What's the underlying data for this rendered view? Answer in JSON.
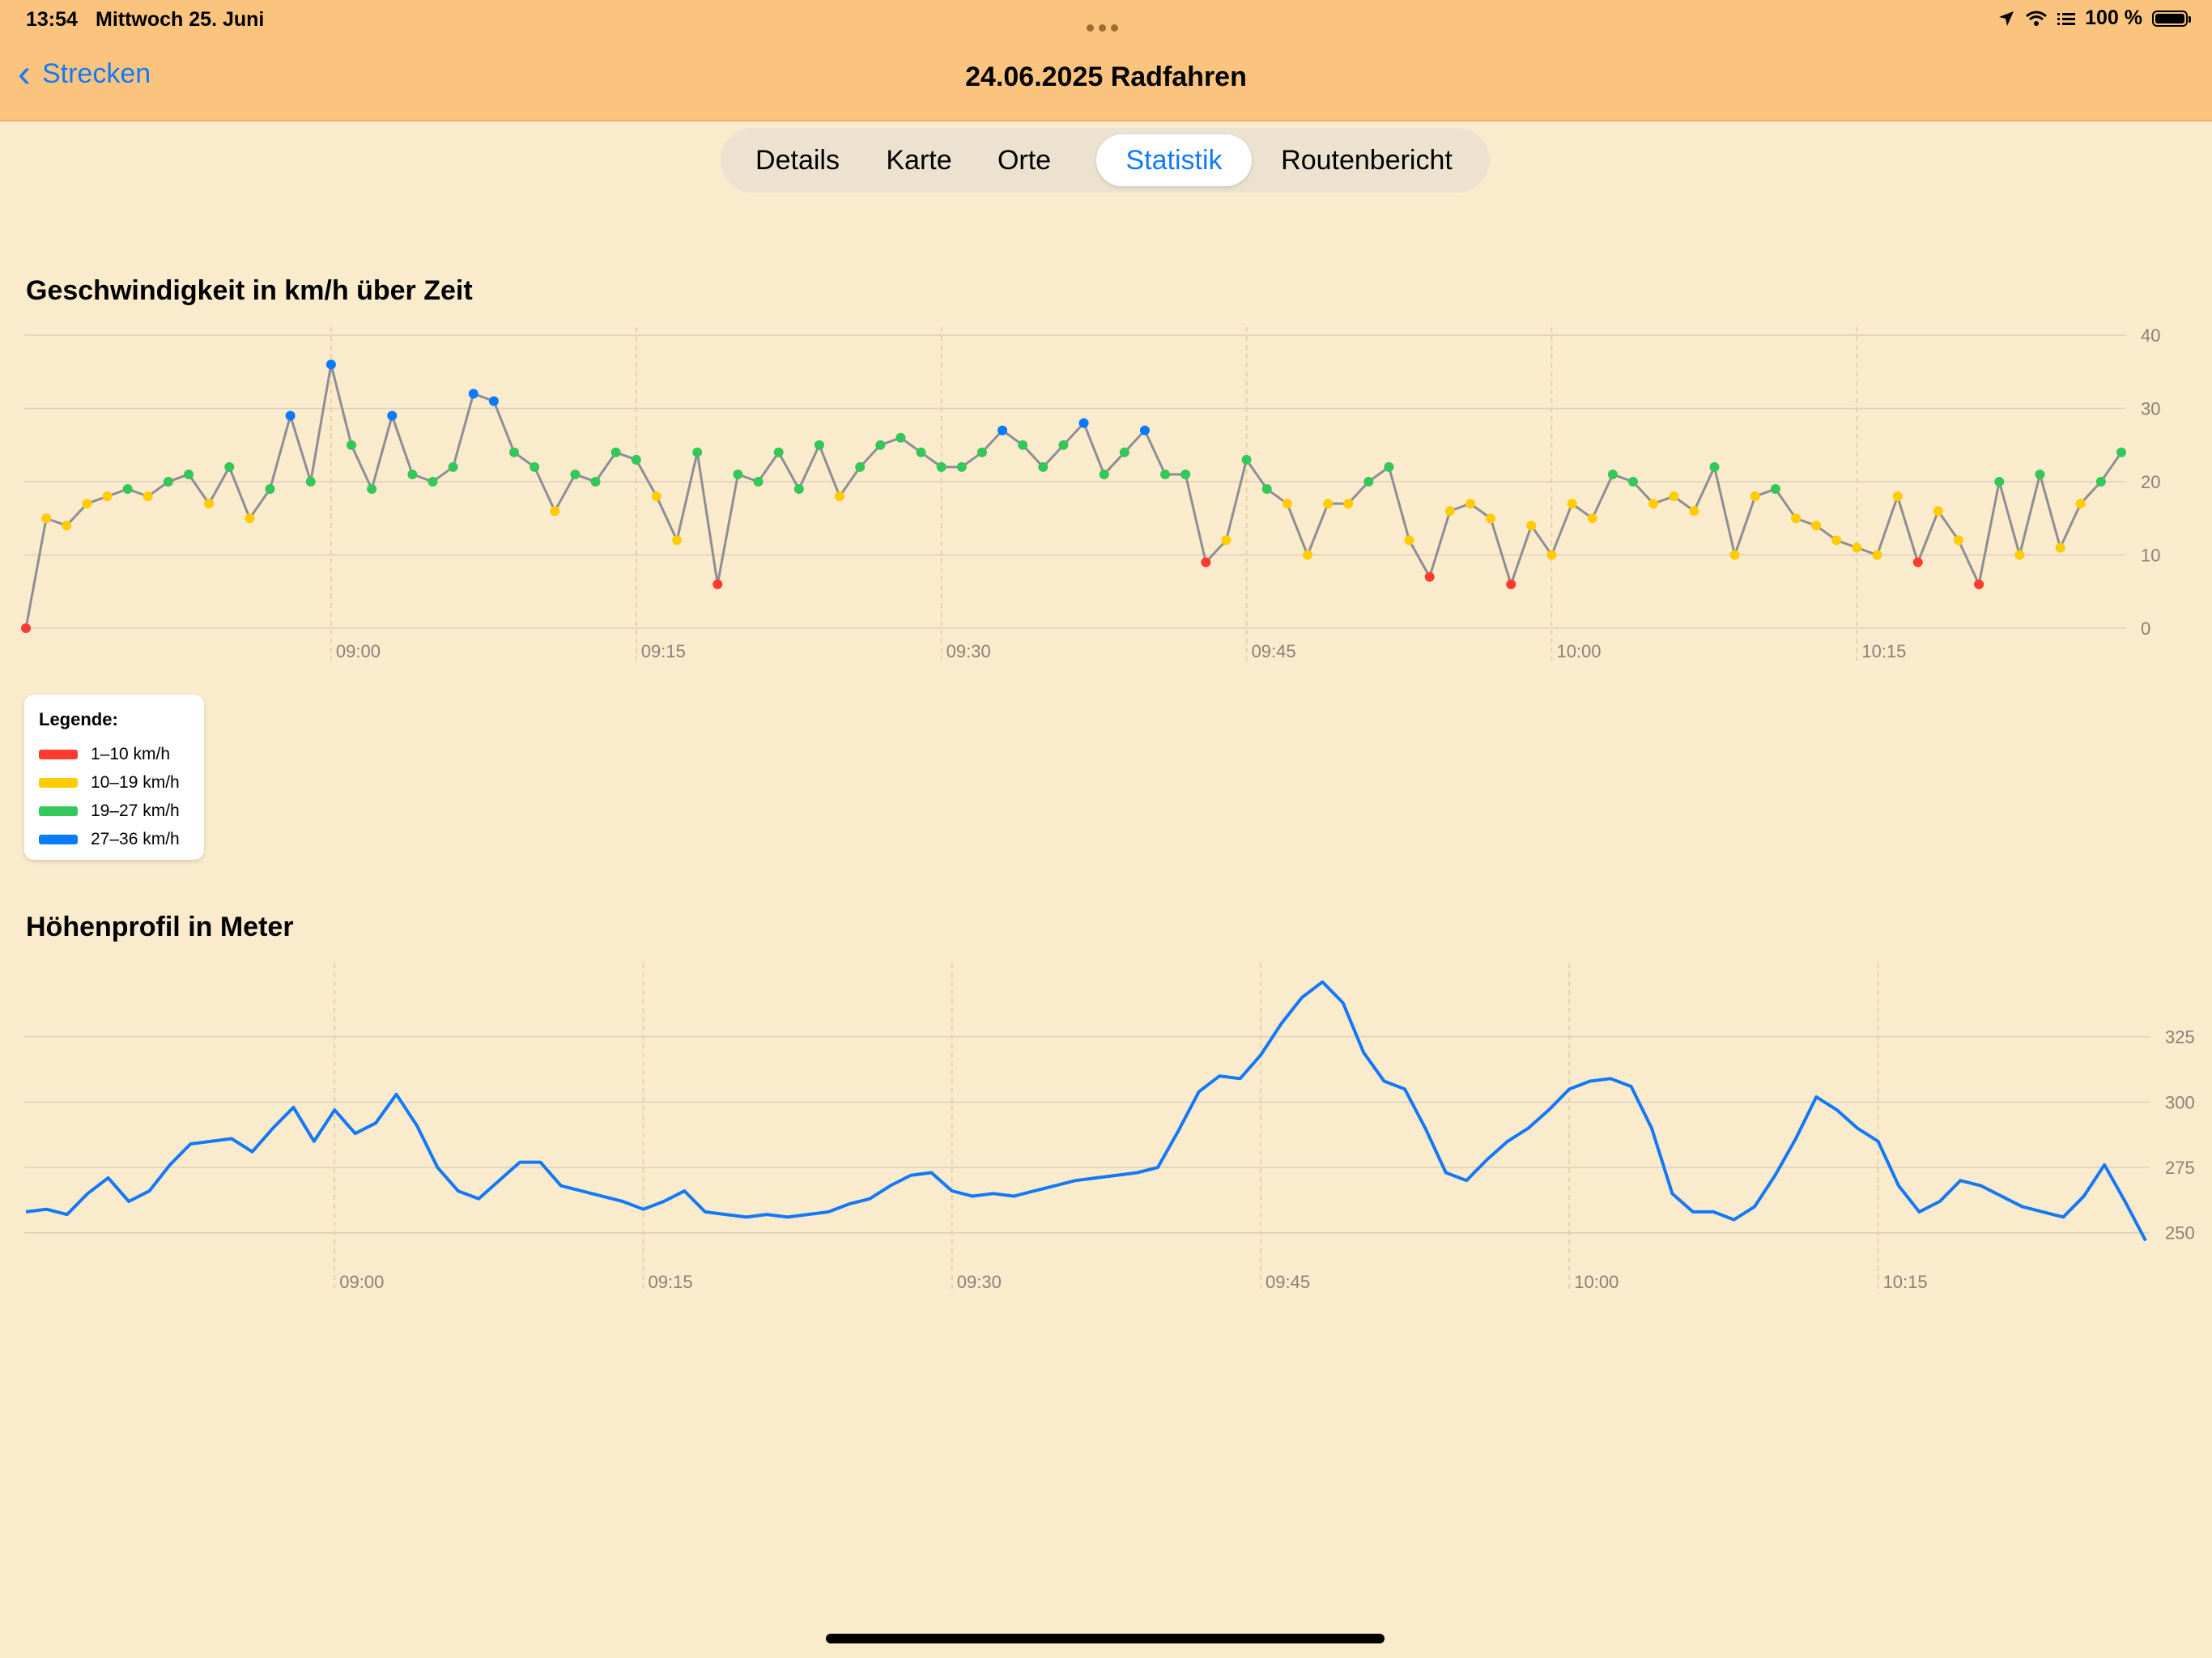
{
  "status_bar": {
    "time": "13:54",
    "date": "Mittwoch 25. Juni",
    "battery": "100 %"
  },
  "nav": {
    "back_label": "Strecken",
    "title": "24.06.2025  Radfahren"
  },
  "tabs": [
    {
      "label": "Details"
    },
    {
      "label": "Karte"
    },
    {
      "label": "Orte"
    },
    {
      "label": "Statistik",
      "active": true
    },
    {
      "label": "Routenbericht"
    }
  ],
  "colors": {
    "red": "#FF3B30",
    "yellow": "#FFCC00",
    "green": "#34C759",
    "blue": "#0A7AFF",
    "line_gray": "#8E8E93",
    "elevation_line": "#1479F6"
  },
  "legend": {
    "title": "Legende:",
    "items": [
      {
        "label": "1–10 km/h",
        "color": "#FF3B30"
      },
      {
        "label": "10–19 km/h",
        "color": "#FFCC00"
      },
      {
        "label": "19–27 km/h",
        "color": "#34C759"
      },
      {
        "label": "27–36 km/h",
        "color": "#0A7AFF"
      }
    ]
  },
  "chart_data": [
    {
      "type": "scatter",
      "title": "Geschwindigkeit in km/h über Zeit",
      "xlabel": "",
      "ylabel": "",
      "xlim": [
        "08:45",
        "10:28"
      ],
      "ylim": [
        0,
        40
      ],
      "x_ticks": [
        "09:00",
        "09:15",
        "09:30",
        "09:45",
        "10:00",
        "10:15"
      ],
      "y_ticks": [
        0,
        10,
        20,
        30,
        40
      ],
      "grid": true,
      "x": [
        "08:45",
        "08:46",
        "08:47",
        "08:48",
        "08:49",
        "08:50",
        "08:51",
        "08:52",
        "08:53",
        "08:54",
        "08:55",
        "08:56",
        "08:57",
        "08:58",
        "08:59",
        "09:00",
        "09:01",
        "09:02",
        "09:03",
        "09:04",
        "09:05",
        "09:06",
        "09:07",
        "09:08",
        "09:09",
        "09:10",
        "09:11",
        "09:12",
        "09:13",
        "09:14",
        "09:15",
        "09:16",
        "09:17",
        "09:18",
        "09:19",
        "09:20",
        "09:21",
        "09:22",
        "09:23",
        "09:24",
        "09:25",
        "09:26",
        "09:27",
        "09:28",
        "09:29",
        "09:30",
        "09:31",
        "09:32",
        "09:33",
        "09:34",
        "09:35",
        "09:36",
        "09:37",
        "09:38",
        "09:39",
        "09:40",
        "09:41",
        "09:42",
        "09:43",
        "09:44",
        "09:45",
        "09:46",
        "09:47",
        "09:48",
        "09:49",
        "09:50",
        "09:51",
        "09:52",
        "09:53",
        "09:54",
        "09:55",
        "09:56",
        "09:57",
        "09:58",
        "09:59",
        "10:00",
        "10:01",
        "10:02",
        "10:03",
        "10:04",
        "10:05",
        "10:06",
        "10:07",
        "10:08",
        "10:09",
        "10:10",
        "10:11",
        "10:12",
        "10:13",
        "10:14",
        "10:15",
        "10:16",
        "10:17",
        "10:18",
        "10:19",
        "10:20",
        "10:21",
        "10:22",
        "10:23",
        "10:24",
        "10:25",
        "10:26",
        "10:27",
        "10:28"
      ],
      "series": [
        {
          "values": [
            0,
            15,
            14,
            17,
            18,
            19,
            18,
            20,
            21,
            17,
            22,
            15,
            19,
            29,
            20,
            36,
            25,
            19,
            29,
            21,
            20,
            22,
            32,
            31,
            24,
            22,
            16,
            21,
            20,
            24,
            23,
            18,
            12,
            24,
            6,
            21,
            20,
            24,
            19,
            25,
            18,
            22,
            25,
            26,
            24,
            22,
            22,
            24,
            27,
            25,
            22,
            25,
            28,
            21,
            24,
            27,
            21,
            21,
            9,
            12,
            23,
            19,
            17,
            10,
            17,
            17,
            20,
            22,
            12,
            7,
            16,
            17,
            15,
            6,
            14,
            10,
            17,
            15,
            21,
            20,
            17,
            18,
            16,
            22,
            10,
            18,
            19,
            15,
            14,
            12,
            11,
            10,
            18,
            9,
            16,
            12,
            6,
            20,
            10,
            21,
            11,
            17,
            20,
            24
          ]
        }
      ]
    },
    {
      "type": "line",
      "title": "Höhenprofil in Meter",
      "xlabel": "",
      "ylabel": "",
      "xlim": [
        "08:45",
        "10:28"
      ],
      "ylim": [
        240,
        350
      ],
      "x_ticks": [
        "09:00",
        "09:15",
        "09:30",
        "09:45",
        "10:00",
        "10:15"
      ],
      "y_ticks": [
        250,
        275,
        300,
        325
      ],
      "grid": true,
      "series": [
        {
          "name": "",
          "values": [
            {
              "x": "08:45",
              "y": 258
            },
            {
              "x": "08:46",
              "y": 259
            },
            {
              "x": "08:47",
              "y": 257
            },
            {
              "x": "08:48",
              "y": 265
            },
            {
              "x": "08:49",
              "y": 271
            },
            {
              "x": "08:50",
              "y": 262
            },
            {
              "x": "08:51",
              "y": 266
            },
            {
              "x": "08:52",
              "y": 276
            },
            {
              "x": "08:53",
              "y": 284
            },
            {
              "x": "08:54",
              "y": 285
            },
            {
              "x": "08:55",
              "y": 286
            },
            {
              "x": "08:56",
              "y": 281
            },
            {
              "x": "08:57",
              "y": 290
            },
            {
              "x": "08:58",
              "y": 298
            },
            {
              "x": "08:59",
              "y": 285
            },
            {
              "x": "09:00",
              "y": 297
            },
            {
              "x": "09:01",
              "y": 288
            },
            {
              "x": "09:02",
              "y": 292
            },
            {
              "x": "09:03",
              "y": 303
            },
            {
              "x": "09:04",
              "y": 291
            },
            {
              "x": "09:05",
              "y": 275
            },
            {
              "x": "09:06",
              "y": 266
            },
            {
              "x": "09:07",
              "y": 263
            },
            {
              "x": "09:08",
              "y": 270
            },
            {
              "x": "09:09",
              "y": 277
            },
            {
              "x": "09:10",
              "y": 277
            },
            {
              "x": "09:11",
              "y": 268
            },
            {
              "x": "09:12",
              "y": 266
            },
            {
              "x": "09:13",
              "y": 264
            },
            {
              "x": "09:14",
              "y": 262
            },
            {
              "x": "09:15",
              "y": 259
            },
            {
              "x": "09:16",
              "y": 262
            },
            {
              "x": "09:17",
              "y": 266
            },
            {
              "x": "09:18",
              "y": 258
            },
            {
              "x": "09:19",
              "y": 257
            },
            {
              "x": "09:20",
              "y": 256
            },
            {
              "x": "09:21",
              "y": 257
            },
            {
              "x": "09:22",
              "y": 256
            },
            {
              "x": "09:23",
              "y": 257
            },
            {
              "x": "09:24",
              "y": 258
            },
            {
              "x": "09:25",
              "y": 261
            },
            {
              "x": "09:26",
              "y": 263
            },
            {
              "x": "09:27",
              "y": 268
            },
            {
              "x": "09:28",
              "y": 272
            },
            {
              "x": "09:29",
              "y": 273
            },
            {
              "x": "09:30",
              "y": 266
            },
            {
              "x": "09:31",
              "y": 264
            },
            {
              "x": "09:32",
              "y": 265
            },
            {
              "x": "09:33",
              "y": 264
            },
            {
              "x": "09:34",
              "y": 266
            },
            {
              "x": "09:35",
              "y": 268
            },
            {
              "x": "09:36",
              "y": 270
            },
            {
              "x": "09:37",
              "y": 271
            },
            {
              "x": "09:38",
              "y": 272
            },
            {
              "x": "09:39",
              "y": 273
            },
            {
              "x": "09:40",
              "y": 275
            },
            {
              "x": "09:41",
              "y": 289
            },
            {
              "x": "09:42",
              "y": 304
            },
            {
              "x": "09:43",
              "y": 310
            },
            {
              "x": "09:44",
              "y": 309
            },
            {
              "x": "09:45",
              "y": 318
            },
            {
              "x": "09:46",
              "y": 330
            },
            {
              "x": "09:47",
              "y": 340
            },
            {
              "x": "09:48",
              "y": 346
            },
            {
              "x": "09:49",
              "y": 338
            },
            {
              "x": "09:50",
              "y": 319
            },
            {
              "x": "09:51",
              "y": 308
            },
            {
              "x": "09:52",
              "y": 305
            },
            {
              "x": "09:53",
              "y": 290
            },
            {
              "x": "09:54",
              "y": 273
            },
            {
              "x": "09:55",
              "y": 270
            },
            {
              "x": "09:56",
              "y": 278
            },
            {
              "x": "09:57",
              "y": 285
            },
            {
              "x": "09:58",
              "y": 290
            },
            {
              "x": "09:59",
              "y": 297
            },
            {
              "x": "10:00",
              "y": 305
            },
            {
              "x": "10:01",
              "y": 308
            },
            {
              "x": "10:02",
              "y": 309
            },
            {
              "x": "10:03",
              "y": 306
            },
            {
              "x": "10:04",
              "y": 290
            },
            {
              "x": "10:05",
              "y": 265
            },
            {
              "x": "10:06",
              "y": 258
            },
            {
              "x": "10:07",
              "y": 258
            },
            {
              "x": "10:08",
              "y": 255
            },
            {
              "x": "10:09",
              "y": 260
            },
            {
              "x": "10:10",
              "y": 272
            },
            {
              "x": "10:11",
              "y": 286
            },
            {
              "x": "10:12",
              "y": 302
            },
            {
              "x": "10:13",
              "y": 297
            },
            {
              "x": "10:14",
              "y": 290
            },
            {
              "x": "10:15",
              "y": 285
            },
            {
              "x": "10:16",
              "y": 268
            },
            {
              "x": "10:17",
              "y": 258
            },
            {
              "x": "10:18",
              "y": 262
            },
            {
              "x": "10:19",
              "y": 270
            },
            {
              "x": "10:20",
              "y": 268
            },
            {
              "x": "10:21",
              "y": 264
            },
            {
              "x": "10:22",
              "y": 260
            },
            {
              "x": "10:23",
              "y": 258
            },
            {
              "x": "10:24",
              "y": 256
            },
            {
              "x": "10:25",
              "y": 264
            },
            {
              "x": "10:26",
              "y": 276
            },
            {
              "x": "10:27",
              "y": 262
            },
            {
              "x": "10:28",
              "y": 247
            }
          ]
        }
      ]
    }
  ]
}
